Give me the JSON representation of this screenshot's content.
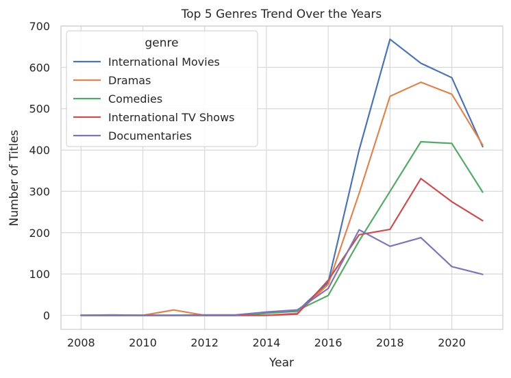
{
  "chart_data": {
    "type": "line",
    "title": "Top 5 Genres Trend Over the Years",
    "xlabel": "Year",
    "ylabel": "Number of Titles",
    "x": [
      2008,
      2009,
      2010,
      2011,
      2012,
      2013,
      2014,
      2015,
      2016,
      2017,
      2018,
      2019,
      2020,
      2021
    ],
    "xlim": [
      2007.35,
      2021.65
    ],
    "ylim": [
      -34,
      700
    ],
    "xticks": [
      2008,
      2010,
      2012,
      2014,
      2016,
      2018,
      2020
    ],
    "yticks": [
      0,
      100,
      200,
      300,
      400,
      500,
      600,
      700
    ],
    "grid": true,
    "legend": {
      "title": "genre",
      "placement": "top-left"
    },
    "series": [
      {
        "name": "International Movies",
        "color": "#4c72b0",
        "values": [
          0,
          0,
          0,
          0,
          0,
          0,
          5,
          10,
          80,
          400,
          668,
          610,
          575,
          408
        ]
      },
      {
        "name": "Dramas",
        "color": "#dd8452",
        "values": [
          0,
          0,
          0,
          13,
          0,
          0,
          0,
          5,
          75,
          295,
          530,
          564,
          535,
          412
        ]
      },
      {
        "name": "Comedies",
        "color": "#55a868",
        "values": [
          0,
          0,
          0,
          0,
          0,
          0,
          5,
          12,
          48,
          180,
          300,
          420,
          416,
          298
        ]
      },
      {
        "name": "International TV Shows",
        "color": "#c44e52",
        "values": [
          0,
          0,
          0,
          0,
          0,
          0,
          0,
          3,
          85,
          195,
          208,
          331,
          275,
          229
        ]
      },
      {
        "name": "Documentaries",
        "color": "#8172b3",
        "values": [
          0,
          1,
          0,
          0,
          1,
          1,
          8,
          13,
          65,
          207,
          167,
          188,
          118,
          99
        ]
      }
    ]
  }
}
